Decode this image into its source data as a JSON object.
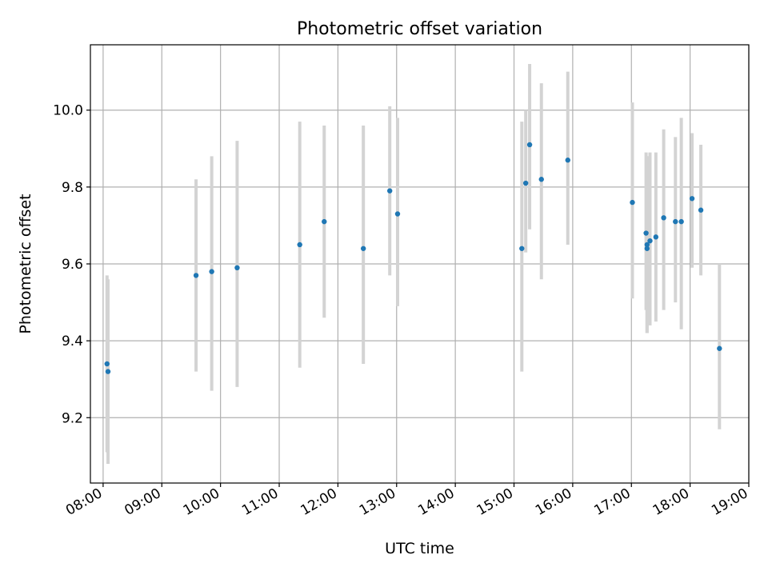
{
  "chart_data": {
    "type": "scatter",
    "title": "Photometric offset variation",
    "xlabel": "UTC time",
    "ylabel": "Photometric offset",
    "x_ticks": [
      "08:00",
      "09:00",
      "10:00",
      "11:00",
      "12:00",
      "13:00",
      "14:00",
      "15:00",
      "16:00",
      "17:00",
      "18:00",
      "19:00"
    ],
    "xlim": [
      "07:47",
      "19:00"
    ],
    "ylim": [
      9.03,
      10.17
    ],
    "y_ticks": [
      "9.2",
      "9.4",
      "9.6",
      "9.8",
      "10.0"
    ],
    "grid": true,
    "colors": {
      "marker": "#1f77b4",
      "errorbar": "#d3d3d3",
      "grid": "#b0b0b0"
    },
    "points": [
      {
        "x": "08:04",
        "y": 9.34,
        "ylow": 9.11,
        "yhigh": 9.57
      },
      {
        "x": "08:05",
        "y": 9.32,
        "ylow": 9.08,
        "yhigh": 9.56
      },
      {
        "x": "09:35",
        "y": 9.57,
        "ylow": 9.32,
        "yhigh": 9.82
      },
      {
        "x": "09:51",
        "y": 9.58,
        "ylow": 9.27,
        "yhigh": 9.88
      },
      {
        "x": "10:17",
        "y": 9.59,
        "ylow": 9.28,
        "yhigh": 9.92
      },
      {
        "x": "11:21",
        "y": 9.65,
        "ylow": 9.33,
        "yhigh": 9.97
      },
      {
        "x": "11:46",
        "y": 9.71,
        "ylow": 9.46,
        "yhigh": 9.96
      },
      {
        "x": "12:26",
        "y": 9.64,
        "ylow": 9.34,
        "yhigh": 9.96
      },
      {
        "x": "12:53",
        "y": 9.79,
        "ylow": 9.57,
        "yhigh": 10.01
      },
      {
        "x": "13:01",
        "y": 9.73,
        "ylow": 9.49,
        "yhigh": 9.98
      },
      {
        "x": "15:08",
        "y": 9.64,
        "ylow": 9.32,
        "yhigh": 9.97
      },
      {
        "x": "15:12",
        "y": 9.81,
        "ylow": 9.63,
        "yhigh": 10.0
      },
      {
        "x": "15:16",
        "y": 9.91,
        "ylow": 9.69,
        "yhigh": 10.12
      },
      {
        "x": "15:28",
        "y": 9.82,
        "ylow": 9.56,
        "yhigh": 10.07
      },
      {
        "x": "15:55",
        "y": 9.87,
        "ylow": 9.65,
        "yhigh": 10.1
      },
      {
        "x": "17:01",
        "y": 9.76,
        "ylow": 9.51,
        "yhigh": 10.02
      },
      {
        "x": "17:15",
        "y": 9.68,
        "ylow": 9.48,
        "yhigh": 9.89
      },
      {
        "x": "17:16",
        "y": 9.65,
        "ylow": 9.42,
        "yhigh": 9.88
      },
      {
        "x": "17:16",
        "y": 9.64,
        "ylow": 9.42,
        "yhigh": 9.88
      },
      {
        "x": "17:19",
        "y": 9.66,
        "ylow": 9.44,
        "yhigh": 9.89
      },
      {
        "x": "17:25",
        "y": 9.67,
        "ylow": 9.45,
        "yhigh": 9.89
      },
      {
        "x": "17:33",
        "y": 9.72,
        "ylow": 9.48,
        "yhigh": 9.95
      },
      {
        "x": "17:45",
        "y": 9.71,
        "ylow": 9.5,
        "yhigh": 9.93
      },
      {
        "x": "17:51",
        "y": 9.71,
        "ylow": 9.43,
        "yhigh": 9.98
      },
      {
        "x": "18:02",
        "y": 9.77,
        "ylow": 9.59,
        "yhigh": 9.94
      },
      {
        "x": "18:11",
        "y": 9.74,
        "ylow": 9.57,
        "yhigh": 9.91
      },
      {
        "x": "18:30",
        "y": 9.38,
        "ylow": 9.17,
        "yhigh": 9.6
      }
    ]
  }
}
